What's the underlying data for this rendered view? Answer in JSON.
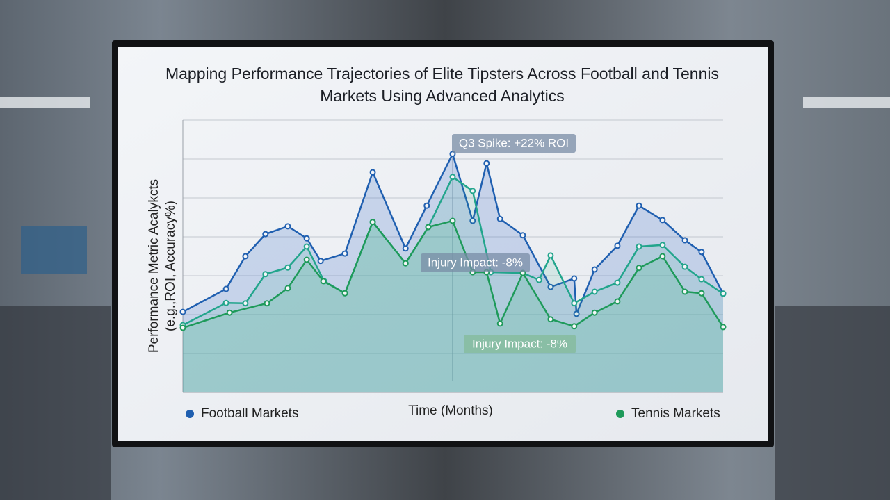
{
  "chart_data": {
    "type": "line",
    "title": "Mapping Performance Trajectories of Elite Tipsters Across Football and Tennis Markets Using Advanced Analytics",
    "x_label": "Time (Months)",
    "y_label": [
      "Performance Metric Acalykcts",
      "(e.g.,ROI, Accuracy%)"
    ],
    "xlim": [
      0,
      14
    ],
    "ylim": [
      0,
      7
    ],
    "grid": true,
    "ygrid": [
      1,
      2,
      3,
      4,
      5,
      6,
      7
    ],
    "annotations": [
      "Q3 Spike: +22% ROI",
      "Injury Impact: -8%",
      "Injury Impact: -8%"
    ],
    "series": [
      {
        "name": "Football Markets",
        "color": "#1f5fb0",
        "legend": "left",
        "x": [
          0,
          1.12,
          1.62,
          2.14,
          2.72,
          3.21,
          3.57,
          4.2,
          4.92,
          5.77,
          6.32,
          6.99,
          7.51,
          7.87,
          8.22,
          8.81,
          9.53,
          10.14,
          10.2,
          10.67,
          11.26,
          11.82,
          12.43,
          13.01,
          13.44,
          14
        ],
        "values": [
          2.07,
          2.66,
          3.5,
          4.07,
          4.27,
          3.96,
          3.38,
          3.57,
          5.66,
          3.7,
          4.8,
          6.13,
          4.41,
          5.89,
          4.46,
          4.04,
          2.71,
          2.93,
          2.02,
          3.16,
          3.77,
          4.8,
          4.43,
          3.91,
          3.61,
          2.54
        ]
      },
      {
        "color": "#22a58c",
        "x": [
          0,
          1.12,
          1.62,
          2.14,
          2.72,
          3.21,
          3.66,
          4.2,
          4.92,
          5.77,
          6.36,
          6.99,
          7.51,
          7.98,
          8.81,
          9.23,
          9.53,
          10.14,
          10.67,
          11.26,
          11.82,
          12.43,
          13.01,
          13.44,
          14
        ],
        "values": [
          1.73,
          2.3,
          2.29,
          3.04,
          3.21,
          3.75,
          2.86,
          2.55,
          4.38,
          3.32,
          4.25,
          5.54,
          5.18,
          3.09,
          3.07,
          2.89,
          3.52,
          2.29,
          2.59,
          2.82,
          3.75,
          3.79,
          3.23,
          2.91,
          2.54
        ]
      },
      {
        "name": "Tennis Markets",
        "color": "#1e9a5a",
        "legend": "right",
        "x": [
          0,
          1.21,
          2.18,
          2.72,
          3.21,
          3.64,
          4.2,
          4.92,
          5.77,
          6.36,
          6.99,
          7.51,
          7.87,
          8.22,
          8.81,
          9.53,
          10.14,
          10.67,
          11.26,
          11.82,
          12.43,
          13.01,
          13.44,
          14
        ],
        "values": [
          1.66,
          2.05,
          2.29,
          2.68,
          3.41,
          2.86,
          2.55,
          4.38,
          3.32,
          4.25,
          4.41,
          3.09,
          3.09,
          1.77,
          3.07,
          1.88,
          1.7,
          2.05,
          2.34,
          3.2,
          3.5,
          2.59,
          2.55,
          1.68
        ]
      }
    ]
  }
}
